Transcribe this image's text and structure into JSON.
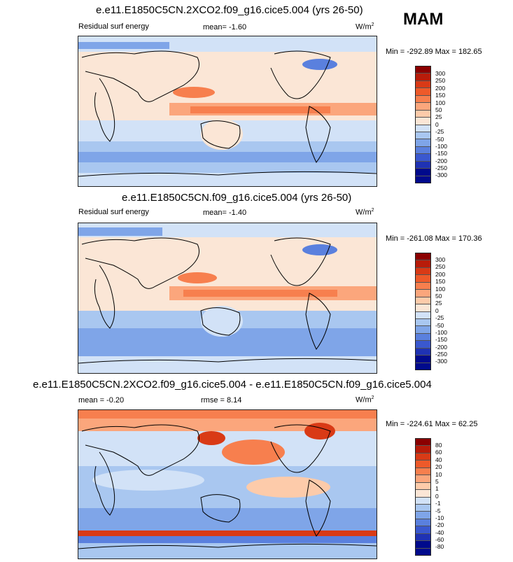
{
  "season": "MAM",
  "panels": [
    {
      "title": "e.e11.E1850C5CN.2XCO2.f09_g16.cice5.004 (yrs 26-50)",
      "left_label": "Residual surf energy",
      "mean_label": "mean=  -1.60",
      "units": "W/m",
      "units_sup": "2",
      "minmax": "Min = -292.89 Max = 182.65",
      "levels": [
        "300",
        "250",
        "200",
        "150",
        "100",
        "50",
        "25",
        "0",
        "-25",
        "-50",
        "-100",
        "-150",
        "-200",
        "-250",
        "-300"
      ]
    },
    {
      "title": "e.e11.E1850C5CN.f09_g16.cice5.004 (yrs 26-50)",
      "left_label": "Residual surf energy",
      "mean_label": "mean=  -1.40",
      "units": "W/m",
      "units_sup": "2",
      "minmax": "Min = -261.08 Max = 170.36",
      "levels": [
        "300",
        "250",
        "200",
        "150",
        "100",
        "50",
        "25",
        "0",
        "-25",
        "-50",
        "-100",
        "-150",
        "-200",
        "-250",
        "-300"
      ]
    },
    {
      "title": "e.e11.E1850C5CN.2XCO2.f09_g16.cice5.004 - e.e11.E1850C5CN.f09_g16.cice5.004",
      "left_label": "mean =  -0.20",
      "mean_label": "rmse =  8.14",
      "units": "W/m",
      "units_sup": "2",
      "minmax": "Min = -224.61 Max = 62.25",
      "levels": [
        "80",
        "60",
        "40",
        "20",
        "10",
        "5",
        "1",
        "0",
        "-1",
        "-5",
        "-10",
        "-20",
        "-40",
        "-60",
        "-80"
      ]
    }
  ],
  "palette": [
    "#8b0000",
    "#b81c0a",
    "#d93a16",
    "#ee5a2a",
    "#f77f4e",
    "#fba67c",
    "#fdcbaa",
    "#fbe6d6",
    "#d2e2f7",
    "#a9c7f0",
    "#7fa5e8",
    "#5a80de",
    "#3a58cf",
    "#1f32b4",
    "#000a8c"
  ]
}
